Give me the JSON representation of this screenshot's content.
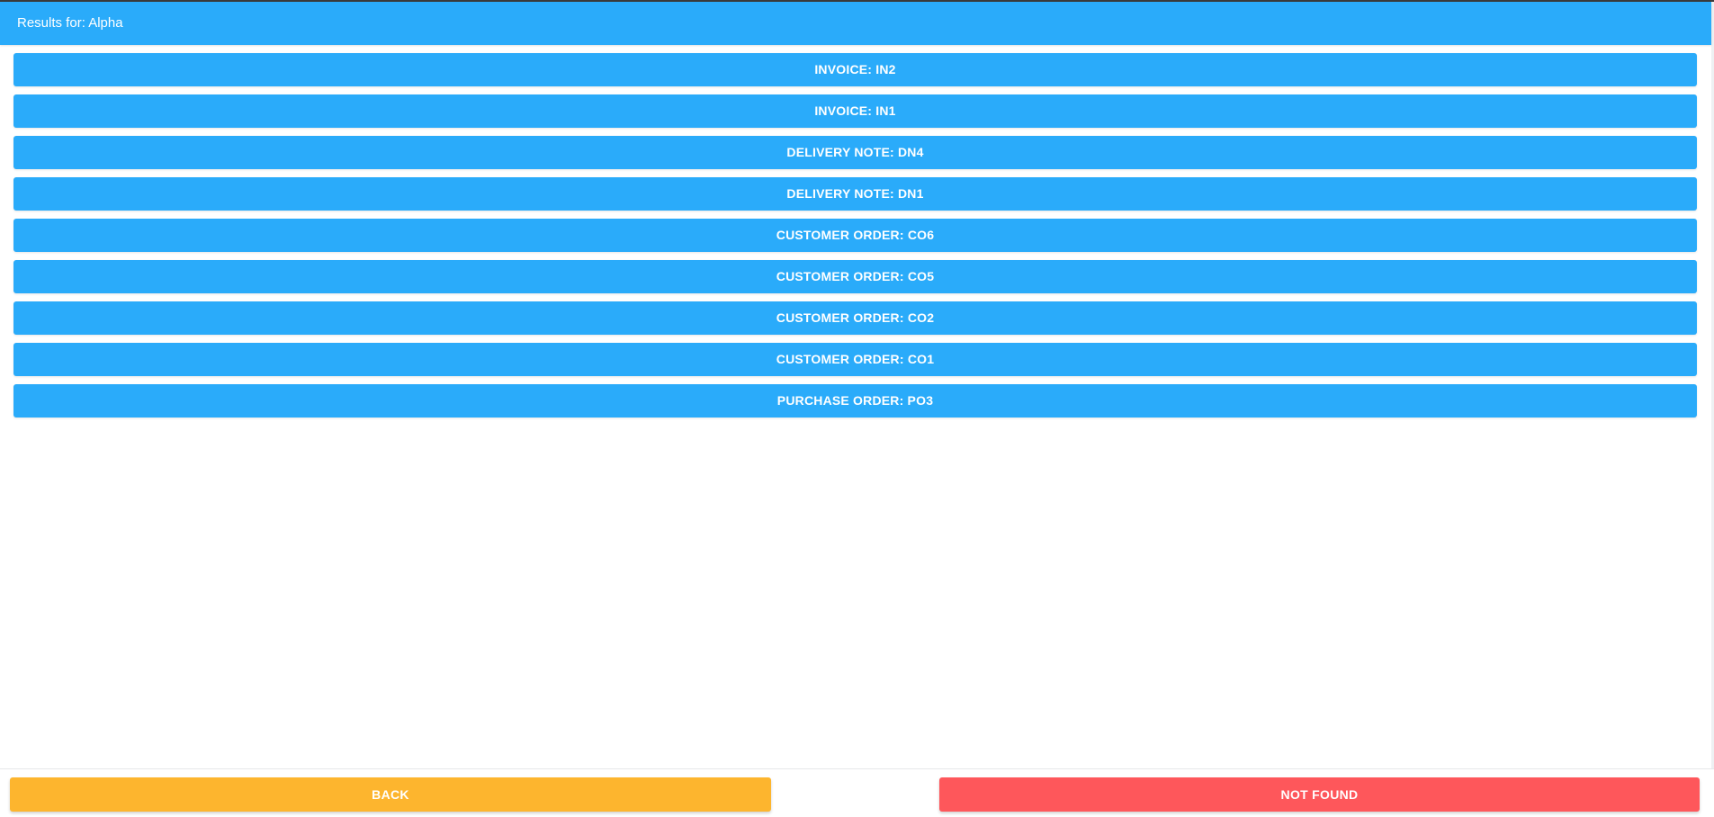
{
  "header": {
    "title": "Results for: Alpha"
  },
  "results": [
    {
      "label": "INVOICE: IN2"
    },
    {
      "label": "INVOICE: IN1"
    },
    {
      "label": "DELIVERY NOTE: DN4"
    },
    {
      "label": "DELIVERY NOTE: DN1"
    },
    {
      "label": "CUSTOMER ORDER: CO6"
    },
    {
      "label": "CUSTOMER ORDER: CO5"
    },
    {
      "label": "CUSTOMER ORDER: CO2"
    },
    {
      "label": "CUSTOMER ORDER: CO1"
    },
    {
      "label": "PURCHASE ORDER: PO3"
    }
  ],
  "footer": {
    "back_label": "BACK",
    "not_found_label": "NOT FOUND"
  },
  "colors": {
    "primary": "#2aabfa",
    "back": "#fdb52e",
    "not_found": "#fe575b"
  }
}
